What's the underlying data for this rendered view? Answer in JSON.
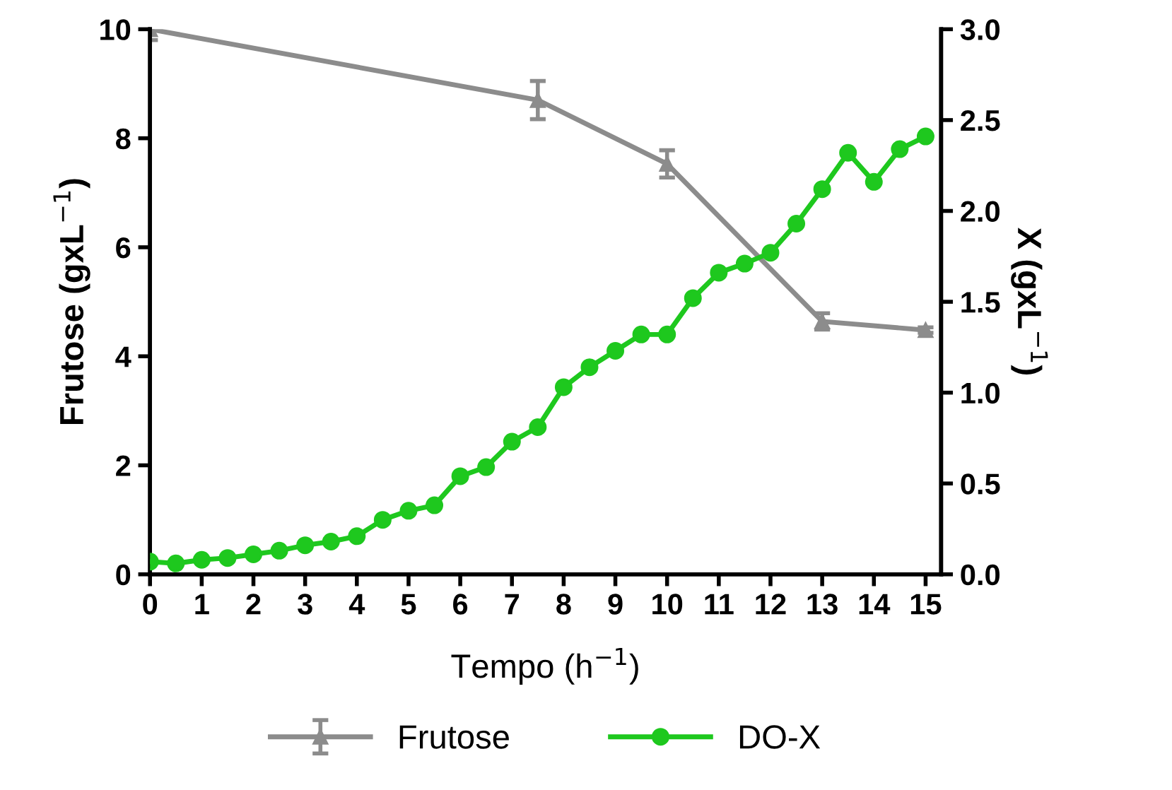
{
  "chart_data": {
    "type": "line",
    "xlabel": "Tempo (h$^{−1}$)",
    "ylabel": "Frutose (gxL$^{−1}$)",
    "y2label": "X (gxL$^{−1}$)",
    "xlim": [
      0,
      15.3
    ],
    "xticks": [
      0,
      1,
      2,
      3,
      4,
      5,
      6,
      7,
      8,
      9,
      10,
      11,
      12,
      13,
      14,
      15
    ],
    "ylim": [
      0,
      10
    ],
    "yticks": [
      0,
      2,
      4,
      6,
      8,
      10
    ],
    "y2lim": [
      0,
      3.0
    ],
    "y2ticks": [
      {
        "value": 0,
        "label": "0.0"
      },
      {
        "value": 0.5,
        "label": "0.5"
      },
      {
        "value": 1,
        "label": "1.0"
      },
      {
        "value": 1.5,
        "label": "1.5"
      },
      {
        "value": 2,
        "label": "2.0"
      },
      {
        "value": 2.5,
        "label": "2.5"
      },
      {
        "value": 3,
        "label": "3.0"
      }
    ],
    "grid": false,
    "legend": "bottom",
    "line_style": "solid",
    "series": [
      {
        "name": "Frutose",
        "color": "#8c8c8c",
        "marker": "triangle",
        "x": [
          0,
          7.5,
          10,
          13,
          15
        ],
        "values": [
          10.0,
          8.7,
          7.53,
          4.64,
          4.48
        ],
        "errors": [
          0.2,
          0.35,
          0.25,
          0.15,
          0.05
        ]
      },
      {
        "name": "DO-X",
        "color": "#1ec81e",
        "marker": "circle",
        "axis": "y2",
        "x": [
          0,
          0.5,
          1,
          1.5,
          2,
          2.5,
          3,
          3.5,
          4,
          4.5,
          5,
          5.5,
          6,
          6.5,
          7,
          7.5,
          8,
          8.5,
          9,
          9.5,
          10,
          10.5,
          11,
          11.5,
          12,
          12.5,
          13,
          13.5,
          14,
          14.5,
          15
        ],
        "values": [
          0.07,
          0.06,
          0.08,
          0.09,
          0.11,
          0.13,
          0.16,
          0.18,
          0.21,
          0.3,
          0.35,
          0.38,
          0.54,
          0.59,
          0.73,
          0.81,
          1.03,
          1.14,
          1.23,
          1.32,
          1.32,
          1.52,
          1.66,
          1.71,
          1.77,
          1.93,
          2.12,
          2.32,
          2.16,
          2.34,
          2.41
        ]
      }
    ]
  }
}
